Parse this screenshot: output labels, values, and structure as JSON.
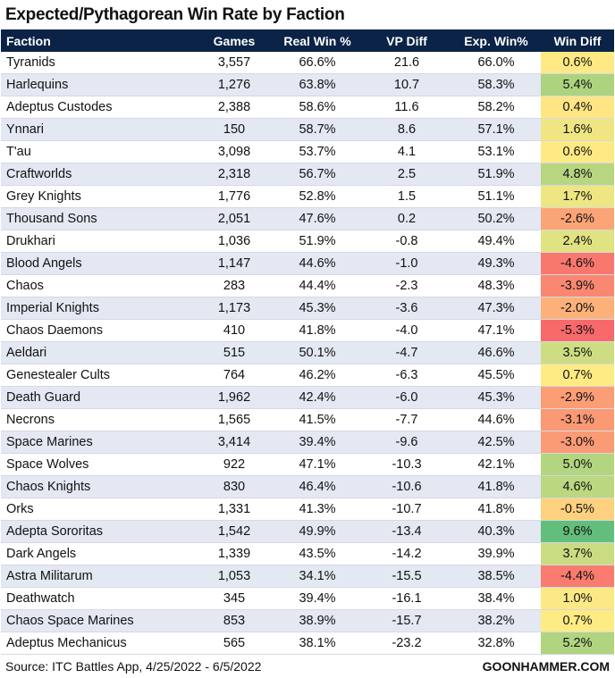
{
  "title": "Expected/Pythagorean Win Rate by Faction",
  "table": {
    "columns": [
      "Faction",
      "Games",
      "Real Win %",
      "VP Diff",
      "Exp. Win%",
      "Win Diff"
    ],
    "rows": [
      [
        "Tyranids",
        "3,557",
        "66.6%",
        "21.6",
        "66.0%",
        "0.6%"
      ],
      [
        "Harlequins",
        "1,276",
        "63.8%",
        "10.7",
        "58.3%",
        "5.4%"
      ],
      [
        "Adeptus Custodes",
        "2,388",
        "58.6%",
        "11.6",
        "58.2%",
        "0.4%"
      ],
      [
        "Ynnari",
        "150",
        "58.7%",
        "8.6",
        "57.1%",
        "1.6%"
      ],
      [
        "T'au",
        "3,098",
        "53.7%",
        "4.1",
        "53.1%",
        "0.6%"
      ],
      [
        "Craftworlds",
        "2,318",
        "56.7%",
        "2.5",
        "51.9%",
        "4.8%"
      ],
      [
        "Grey Knights",
        "1,776",
        "52.8%",
        "1.5",
        "51.1%",
        "1.7%"
      ],
      [
        "Thousand Sons",
        "2,051",
        "47.6%",
        "0.2",
        "50.2%",
        "-2.6%"
      ],
      [
        "Drukhari",
        "1,036",
        "51.9%",
        "-0.8",
        "49.4%",
        "2.4%"
      ],
      [
        "Blood Angels",
        "1,147",
        "44.6%",
        "-1.0",
        "49.3%",
        "-4.6%"
      ],
      [
        "Chaos",
        "283",
        "44.4%",
        "-2.3",
        "48.3%",
        "-3.9%"
      ],
      [
        "Imperial Knights",
        "1,173",
        "45.3%",
        "-3.6",
        "47.3%",
        "-2.0%"
      ],
      [
        "Chaos Daemons",
        "410",
        "41.8%",
        "-4.0",
        "47.1%",
        "-5.3%"
      ],
      [
        "Aeldari",
        "515",
        "50.1%",
        "-4.7",
        "46.6%",
        "3.5%"
      ],
      [
        "Genestealer Cults",
        "764",
        "46.2%",
        "-6.3",
        "45.5%",
        "0.7%"
      ],
      [
        "Death Guard",
        "1,962",
        "42.4%",
        "-6.0",
        "45.3%",
        "-2.9%"
      ],
      [
        "Necrons",
        "1,565",
        "41.5%",
        "-7.7",
        "44.6%",
        "-3.1%"
      ],
      [
        "Space Marines",
        "3,414",
        "39.4%",
        "-9.6",
        "42.5%",
        "-3.0%"
      ],
      [
        "Space Wolves",
        "922",
        "47.1%",
        "-10.3",
        "42.1%",
        "5.0%"
      ],
      [
        "Chaos Knights",
        "830",
        "46.4%",
        "-10.6",
        "41.8%",
        "4.6%"
      ],
      [
        "Orks",
        "1,331",
        "41.3%",
        "-10.7",
        "41.8%",
        "-0.5%"
      ],
      [
        "Adepta Sororitas",
        "1,542",
        "49.9%",
        "-13.4",
        "40.3%",
        "9.6%"
      ],
      [
        "Dark Angels",
        "1,339",
        "43.5%",
        "-14.2",
        "39.9%",
        "3.7%"
      ],
      [
        "Astra Militarum",
        "1,053",
        "34.1%",
        "-15.5",
        "38.5%",
        "-4.4%"
      ],
      [
        "Deathwatch",
        "345",
        "39.4%",
        "-16.1",
        "38.4%",
        "1.0%"
      ],
      [
        "Chaos Space Marines",
        "853",
        "38.9%",
        "-15.7",
        "38.2%",
        "0.7%"
      ],
      [
        "Adeptus Mechanicus",
        "565",
        "38.1%",
        "-23.2",
        "32.8%",
        "5.2%"
      ]
    ],
    "color_scale": {
      "min": "#f8696b",
      "mid": "#ffeb84",
      "max": "#63be7b"
    }
  },
  "footer": {
    "source": "Source: ITC Battles App, 4/25/2022 - 6/5/2022",
    "brand": "GOONHAMMER.COM"
  }
}
